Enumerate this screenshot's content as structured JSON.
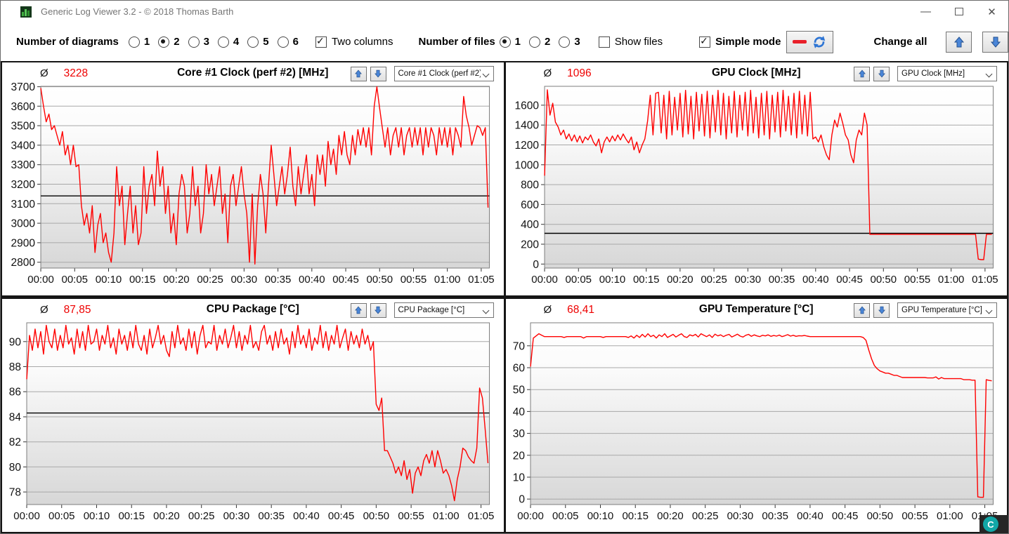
{
  "window": {
    "title": "Generic Log Viewer 3.2 - © 2018 Thomas Barth",
    "minimize_glyph": "—",
    "close_glyph": "✕"
  },
  "toolbar": {
    "diagrams_label": "Number of diagrams",
    "diagrams_options": [
      "1",
      "2",
      "3",
      "4",
      "5",
      "6"
    ],
    "diagrams_selected": "2",
    "two_columns_label": "Two columns",
    "two_columns_checked": true,
    "files_label": "Number of files",
    "files_options": [
      "1",
      "2",
      "3"
    ],
    "files_selected": "1",
    "show_files_label": "Show files",
    "show_files_checked": false,
    "simple_mode_label": "Simple mode",
    "simple_mode_checked": true,
    "change_all_label": "Change all"
  },
  "overlay": {
    "badge_label": "C"
  },
  "chart_data": [
    {
      "type": "line",
      "title": "Core #1 Clock (perf #2) [MHz]",
      "avg_symbol": "Ø",
      "average": "3228",
      "dropdown_value": "Core #1 Clock (perf #2) [MHz]",
      "line_color": "#ff0000",
      "marker_value": 3140,
      "ylim": [
        2770,
        3702
      ],
      "yticks": [
        2800,
        2900,
        3000,
        3100,
        3200,
        3300,
        3400,
        3500,
        3600,
        3700
      ],
      "xlim": [
        0,
        66.2
      ],
      "xticks": {
        "minutes": [
          0,
          5,
          10,
          15,
          20,
          25,
          30,
          35,
          40,
          45,
          50,
          55,
          60,
          65
        ],
        "labels": [
          "00:00",
          "00:05",
          "00:10",
          "00:15",
          "00:20",
          "00:25",
          "00:30",
          "00:35",
          "00:40",
          "00:45",
          "00:50",
          "00:55",
          "01:00",
          "01:05"
        ]
      },
      "series": {
        "x_start": 0,
        "x_step": 0.4,
        "values": [
          3693,
          3600,
          3520,
          3560,
          3480,
          3500,
          3450,
          3400,
          3470,
          3350,
          3400,
          3300,
          3400,
          3290,
          3300,
          3090,
          2990,
          3050,
          2950,
          3090,
          2850,
          2990,
          3050,
          2900,
          2950,
          2850,
          2800,
          2950,
          3290,
          3090,
          3190,
          2890,
          3050,
          3190,
          2950,
          3090,
          2890,
          2950,
          3290,
          3050,
          3190,
          3250,
          3090,
          3370,
          3190,
          3290,
          3050,
          3190,
          2950,
          3050,
          2890,
          3150,
          3250,
          3190,
          2950,
          3050,
          3290,
          3090,
          3190,
          2950,
          3050,
          3300,
          3150,
          3250,
          3090,
          3190,
          3290,
          3050,
          3150,
          2900,
          3190,
          3250,
          3090,
          3190,
          3290,
          3150,
          3050,
          2800,
          3150,
          2790,
          3090,
          3250,
          3150,
          2950,
          3190,
          3400,
          3250,
          3090,
          3190,
          3290,
          3150,
          3250,
          3390,
          3190,
          3090,
          3290,
          3150,
          3250,
          3350,
          3150,
          3250,
          3090,
          3350,
          3250,
          3350,
          3190,
          3420,
          3300,
          3380,
          3250,
          3450,
          3350,
          3470,
          3350,
          3300,
          3450,
          3350,
          3480,
          3400,
          3490,
          3390,
          3490,
          3350,
          3600,
          3700,
          3590,
          3490,
          3390,
          3490,
          3350,
          3450,
          3490,
          3390,
          3490,
          3350,
          3450,
          3490,
          3390,
          3490,
          3400,
          3490,
          3350,
          3490,
          3390,
          3490,
          3450,
          3350,
          3490,
          3400,
          3490,
          3390,
          3490,
          3350,
          3490,
          3450,
          3390,
          3650,
          3550,
          3490,
          3400,
          3450,
          3500,
          3490,
          3450,
          3490,
          3080
        ]
      }
    },
    {
      "type": "line",
      "title": "GPU Clock [MHz]",
      "avg_symbol": "Ø",
      "average": "1096",
      "dropdown_value": "GPU Clock [MHz]",
      "line_color": "#ff0000",
      "marker_value": 310,
      "ylim": [
        -40,
        1790
      ],
      "yticks": [
        0,
        200,
        400,
        600,
        800,
        1000,
        1200,
        1400,
        1600
      ],
      "xlim": [
        0,
        66.2
      ],
      "xticks": {
        "minutes": [
          0,
          5,
          10,
          15,
          20,
          25,
          30,
          35,
          40,
          45,
          50,
          55,
          60,
          65
        ],
        "labels": [
          "00:00",
          "00:05",
          "00:10",
          "00:15",
          "00:20",
          "00:25",
          "00:30",
          "00:35",
          "00:40",
          "00:45",
          "00:50",
          "00:55",
          "01:00",
          "01:05"
        ]
      },
      "series": {
        "x_start": 0,
        "x_step": 0.4,
        "values": [
          890,
          1755,
          1500,
          1620,
          1430,
          1380,
          1300,
          1350,
          1260,
          1310,
          1240,
          1300,
          1230,
          1290,
          1220,
          1280,
          1250,
          1300,
          1230,
          1190,
          1260,
          1120,
          1230,
          1280,
          1230,
          1290,
          1240,
          1300,
          1250,
          1310,
          1260,
          1220,
          1280,
          1150,
          1230,
          1120,
          1200,
          1260,
          1440,
          1700,
          1300,
          1720,
          1730,
          1320,
          1700,
          1260,
          1740,
          1300,
          1680,
          1350,
          1720,
          1280,
          1750,
          1310,
          1690,
          1260,
          1730,
          1340,
          1710,
          1290,
          1740,
          1270,
          1700,
          1330,
          1750,
          1300,
          1720,
          1260,
          1690,
          1320,
          1740,
          1280,
          1700,
          1350,
          1730,
          1290,
          1750,
          1320,
          1680,
          1270,
          1720,
          1300,
          1740,
          1260,
          1700,
          1330,
          1730,
          1280,
          1750,
          1340,
          1690,
          1300,
          1720,
          1270,
          1740,
          1310,
          1700,
          1290,
          1730,
          1260,
          1280,
          1230,
          1300,
          1180,
          1100,
          1050,
          1300,
          1450,
          1380,
          1520,
          1420,
          1300,
          1250,
          1100,
          1020,
          1250,
          1350,
          1300,
          1520,
          1400,
          300,
          300,
          300,
          300,
          300,
          300,
          300,
          300,
          300,
          300,
          300,
          300,
          300,
          300,
          300,
          300,
          300,
          300,
          300,
          300,
          300,
          300,
          300,
          300,
          300,
          300,
          300,
          300,
          300,
          300,
          300,
          300,
          300,
          300,
          300,
          300,
          300,
          300,
          300,
          300,
          50,
          45,
          45,
          300,
          300,
          300
        ]
      }
    },
    {
      "type": "line",
      "title": "CPU Package [°C]",
      "avg_symbol": "Ø",
      "average": "87,85",
      "dropdown_value": "CPU Package [°C]",
      "line_color": "#ff0000",
      "marker_value": 84.3,
      "ylim": [
        77.0,
        91.5
      ],
      "yticks": [
        78,
        80,
        82,
        84,
        86,
        88,
        90
      ],
      "xlim": [
        0,
        66.2
      ],
      "xticks": {
        "minutes": [
          0,
          5,
          10,
          15,
          20,
          25,
          30,
          35,
          40,
          45,
          50,
          55,
          60,
          65
        ],
        "labels": [
          "00:00",
          "00:05",
          "00:10",
          "00:15",
          "00:20",
          "00:25",
          "00:30",
          "00:35",
          "00:40",
          "00:45",
          "00:50",
          "00:55",
          "01:00",
          "01:05"
        ]
      },
      "series": {
        "x_start": 0,
        "x_step": 0.4,
        "values": [
          87.0,
          90.5,
          89.3,
          91.0,
          89.5,
          90.8,
          89.0,
          91.3,
          90.0,
          89.5,
          91.0,
          89.3,
          90.5,
          89.5,
          91.3,
          89.8,
          90.3,
          89.0,
          91.0,
          89.5,
          90.8,
          89.3,
          91.3,
          89.8,
          90.0,
          91.0,
          89.3,
          90.5,
          89.8,
          91.3,
          89.5,
          90.3,
          89.0,
          91.0,
          89.8,
          90.5,
          89.3,
          90.8,
          89.5,
          91.3,
          89.8,
          89.3,
          90.5,
          89.0,
          91.0,
          89.5,
          90.3,
          91.3,
          89.8,
          90.5,
          89.3,
          88.8,
          90.8,
          89.5,
          91.3,
          89.8,
          90.3,
          89.3,
          91.0,
          89.5,
          90.8,
          89.0,
          90.5,
          91.3,
          89.5,
          90.0,
          89.8,
          91.3,
          89.3,
          90.5,
          89.8,
          91.0,
          89.5,
          90.3,
          91.3,
          89.5,
          90.8,
          89.3,
          90.5,
          89.8,
          91.3,
          89.5,
          90.0,
          89.3,
          90.8,
          91.3,
          89.8,
          90.5,
          89.3,
          90.8,
          89.5,
          91.0,
          89.8,
          90.3,
          89.0,
          90.8,
          89.5,
          91.3,
          89.8,
          90.5,
          89.5,
          91.0,
          89.3,
          90.3,
          89.8,
          91.3,
          89.5,
          90.8,
          89.3,
          90.5,
          89.8,
          91.3,
          89.5,
          90.3,
          91.0,
          89.3,
          90.8,
          89.8,
          90.5,
          89.5,
          91.0,
          89.8,
          90.5,
          89.3,
          90.0,
          85.0,
          84.5,
          85.5,
          81.3,
          81.3,
          80.8,
          80.3,
          79.5,
          80.0,
          79.3,
          80.5,
          79.0,
          79.8,
          77.9,
          79.5,
          80.0,
          79.3,
          80.5,
          81.0,
          80.3,
          81.3,
          80.0,
          81.3,
          80.5,
          79.5,
          79.8,
          79.3,
          78.5,
          77.3,
          79.0,
          80.0,
          81.5,
          81.3,
          80.8,
          80.5,
          80.3,
          81.5,
          86.3,
          85.5,
          83.0,
          80.3
        ]
      }
    },
    {
      "type": "line",
      "title": "GPU Temperature [°C]",
      "avg_symbol": "Ø",
      "average": "68,41",
      "dropdown_value": "GPU Temperature [°C]",
      "line_color": "#ff0000",
      "marker_value": null,
      "ylim": [
        -2.5,
        80.5
      ],
      "yticks": [
        0,
        10,
        20,
        30,
        40,
        50,
        60,
        70
      ],
      "xlim": [
        0,
        66.2
      ],
      "xticks": {
        "minutes": [
          0,
          5,
          10,
          15,
          20,
          25,
          30,
          35,
          40,
          45,
          50,
          55,
          60,
          65
        ],
        "labels": [
          "00:00",
          "00:05",
          "00:10",
          "00:15",
          "00:20",
          "00:25",
          "00:30",
          "00:35",
          "00:40",
          "00:45",
          "00:50",
          "00:55",
          "01:00",
          "01:05"
        ]
      },
      "series": {
        "x_start": 0,
        "x_step": 0.4,
        "values": [
          60.5,
          73.5,
          74.5,
          75.5,
          74.8,
          74.2,
          74.2,
          74.2,
          74.2,
          74.2,
          74.2,
          74.2,
          73.8,
          74.2,
          74.2,
          74.2,
          74.2,
          74.2,
          74.2,
          73.5,
          74.2,
          74.2,
          74.2,
          74.2,
          74.2,
          74.2,
          73.8,
          74.2,
          74.2,
          74.2,
          74.2,
          74.2,
          74.2,
          74.2,
          74.2,
          73.8,
          74.5,
          73.5,
          74.8,
          73.8,
          75.2,
          74.0,
          75.5,
          74.2,
          74.8,
          73.5,
          75.0,
          74.2,
          75.5,
          73.8,
          74.5,
          75.2,
          74.0,
          74.8,
          75.5,
          74.2,
          73.8,
          75.0,
          74.5,
          75.2,
          74.0,
          75.5,
          74.8,
          74.2,
          75.0,
          73.8,
          75.3,
          74.5,
          75.0,
          74.2,
          74.8,
          75.2,
          74.0,
          74.6,
          75.3,
          74.4,
          74.0,
          74.8,
          75.2,
          74.3,
          75.0,
          74.5,
          74.2,
          74.8,
          74.5,
          75.0,
          74.3,
          74.7,
          74.4,
          74.9,
          74.2,
          74.6,
          75.1,
          74.4,
          74.8,
          74.3,
          74.6,
          74.5,
          74.7,
          74.4,
          74.2,
          74.2,
          74.2,
          74.2,
          74.2,
          74.2,
          74.2,
          74.2,
          74.2,
          74.2,
          74.2,
          74.2,
          74.2,
          74.2,
          74.2,
          74.2,
          74.2,
          74.2,
          74.2,
          73.8,
          72.5,
          68.0,
          64.0,
          61.0,
          59.5,
          58.5,
          58.0,
          57.5,
          57.5,
          57.0,
          56.5,
          56.5,
          56.0,
          55.5,
          55.5,
          55.5,
          55.5,
          55.5,
          55.5,
          55.5,
          55.5,
          55.5,
          55.3,
          55.3,
          55.3,
          55.8,
          54.8,
          55.5,
          55.0,
          55.0,
          55.0,
          55.0,
          55.0,
          55.0,
          55.0,
          54.5,
          54.5,
          54.5,
          54.3,
          54.3,
          1.0,
          0.8,
          0.8,
          54.5,
          54.2,
          54.0
        ]
      }
    }
  ]
}
